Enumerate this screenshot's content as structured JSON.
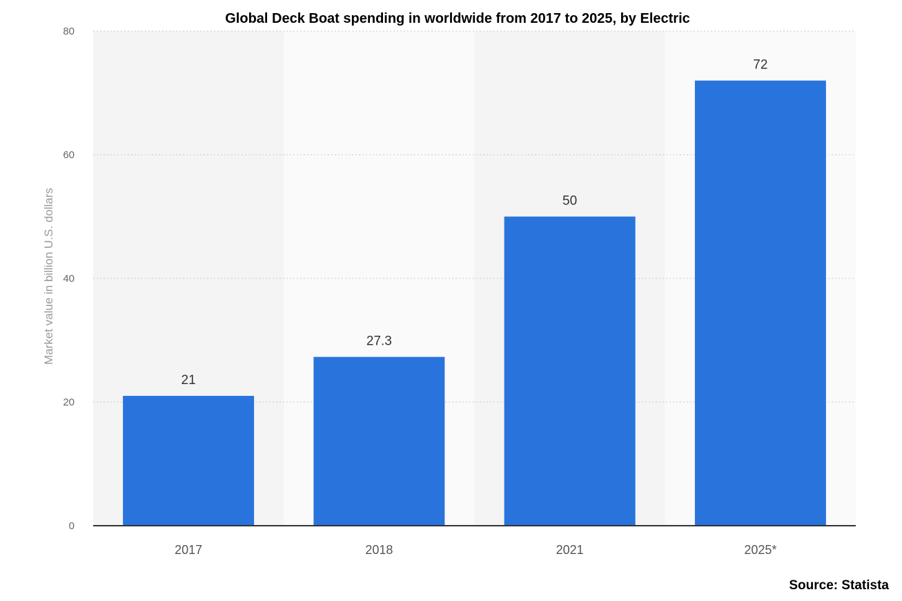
{
  "chart_data": {
    "type": "bar",
    "title": "Global Deck Boat spending in worldwide from 2017 to 2025, by Electric",
    "ylabel": "Market value in billion U.S. dollars",
    "xlabel": "",
    "categories": [
      "2017",
      "2018",
      "2021",
      "2025*"
    ],
    "values": [
      21,
      27.3,
      50,
      72
    ],
    "value_labels": [
      "21",
      "27.3",
      "50",
      "72"
    ],
    "ylim": [
      0,
      80
    ],
    "yticks": [
      0,
      20,
      40,
      60,
      80
    ],
    "ytick_labels": [
      "0",
      "20",
      "40",
      "60",
      "80"
    ],
    "grid": true,
    "bar_color": "#2874dc",
    "source": "Source: Statista"
  }
}
